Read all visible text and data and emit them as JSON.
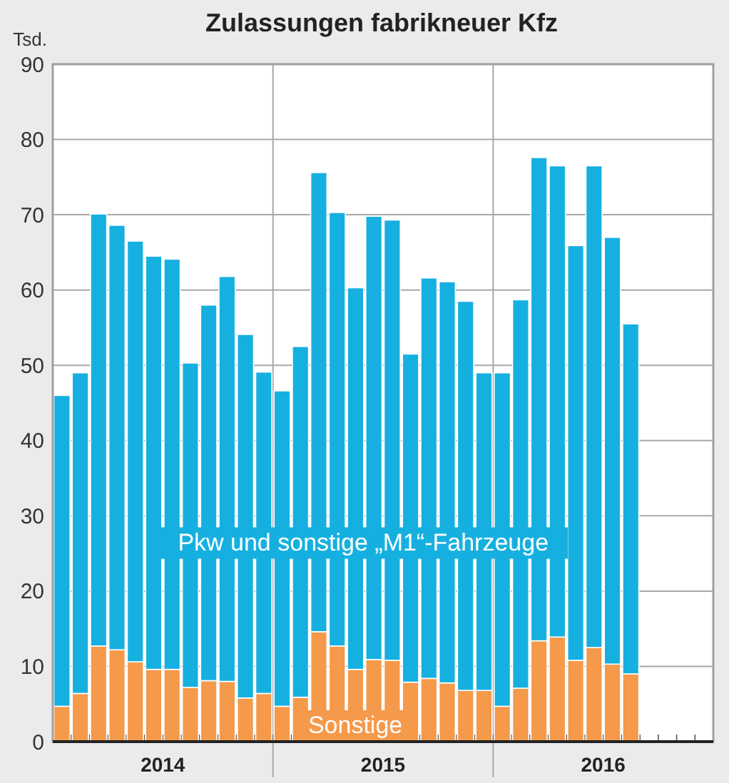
{
  "chart_data": {
    "type": "bar",
    "title": "Zulassungen fabrikneuer Kfz",
    "ylabel": "Tsd.",
    "stacked": true,
    "grid": true,
    "categories": [
      null,
      null,
      null,
      null,
      null,
      null,
      "2014",
      null,
      null,
      null,
      null,
      null,
      null,
      null,
      null,
      null,
      null,
      null,
      "2015",
      null,
      null,
      null,
      null,
      null,
      null,
      null,
      null,
      null,
      null,
      null,
      "2016",
      null,
      null,
      null,
      null,
      null
    ],
    "ylim": [
      0,
      90
    ],
    "yticks": [
      0,
      10,
      20,
      30,
      40,
      50,
      60,
      70,
      80,
      90
    ],
    "series": [
      {
        "name": "Sonstige",
        "color": "#f5994a",
        "values": [
          4.7,
          6.4,
          12.7,
          12.2,
          10.6,
          9.6,
          9.6,
          7.2,
          8.1,
          8.0,
          5.8,
          6.4,
          4.7,
          5.9,
          14.6,
          12.7,
          9.6,
          10.9,
          10.8,
          7.9,
          8.4,
          7.8,
          6.8,
          6.8,
          4.7,
          7.1,
          13.4,
          13.9,
          10.8,
          12.5,
          10.3,
          9.0,
          null,
          null,
          null,
          null
        ]
      },
      {
        "name": "Pkw und sonstige „M1“-Fahrzeuge",
        "color": "#16b0e0",
        "values": [
          41.3,
          42.6,
          57.4,
          56.4,
          55.9,
          54.9,
          54.5,
          43.1,
          49.9,
          53.8,
          48.3,
          42.7,
          41.9,
          46.6,
          61.0,
          57.6,
          50.7,
          58.9,
          58.5,
          43.6,
          53.2,
          53.3,
          51.7,
          42.2,
          44.3,
          51.6,
          64.2,
          62.6,
          55.1,
          64.0,
          56.7,
          46.5,
          null,
          null,
          null,
          null
        ]
      }
    ]
  }
}
